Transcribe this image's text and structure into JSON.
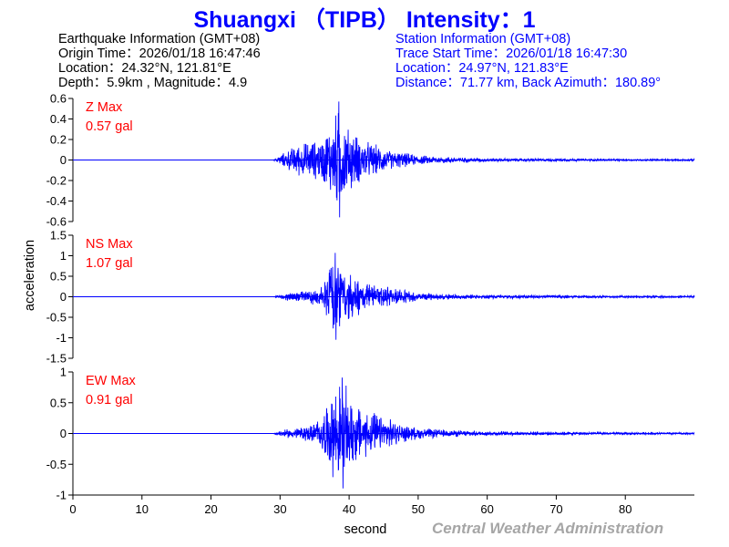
{
  "title": "Shuangxi （TIPB） Intensity：1",
  "earthquake": {
    "header": "Earthquake Information  (GMT+08)",
    "origin_time": "Origin Time：2026/01/18 16:47:46",
    "location": "Location：24.32°N, 121.81°E",
    "depth_magnitude": "Depth：5.9km , Magnitude：4.9"
  },
  "station": {
    "header": "Station Information  (GMT+08)",
    "trace_start": "Trace Start Time：2026/01/18 16:47:30",
    "location": "Location：24.97°N, 121.83°E",
    "distance": "Distance：71.77 km, Back Azimuth：180.89°"
  },
  "credit": "Central Weather Administration",
  "colors": {
    "trace": "#0000ff",
    "label": "#ff0000",
    "axis": "#000000",
    "credit": "#a6a6a6"
  },
  "chart_data": {
    "type": "line",
    "xlabel": "second",
    "ylabel": "acceleration",
    "xlim": [
      0,
      90
    ],
    "x_ticks": [
      0,
      10,
      20,
      30,
      40,
      50,
      60,
      70,
      80
    ],
    "grid": false,
    "series": [
      {
        "name": "Z Max",
        "annotation": "0.57 gal",
        "ylim": [
          -0.6,
          0.6
        ],
        "y_ticks": [
          0.6,
          0.4,
          0.2,
          0,
          -0.2,
          -0.4,
          -0.6
        ],
        "y_tick_labels": [
          "0.6",
          "0.4",
          "0.2",
          "0",
          "-0.2",
          "-0.4",
          "-0.6"
        ],
        "peak": 0.57,
        "envelope": {
          "t": [
            0,
            29,
            30,
            32,
            34,
            36,
            37.5,
            38.5,
            39.5,
            41,
            42,
            44,
            46,
            48,
            50,
            55,
            60,
            70,
            80,
            90
          ],
          "a": [
            0.0,
            0.0,
            0.05,
            0.15,
            0.2,
            0.22,
            0.42,
            0.57,
            0.38,
            0.28,
            0.22,
            0.16,
            0.1,
            0.08,
            0.05,
            0.03,
            0.02,
            0.015,
            0.01,
            0.01
          ]
        }
      },
      {
        "name": "NS Max",
        "annotation": "1.07 gal",
        "ylim": [
          -1.5,
          1.5
        ],
        "y_ticks": [
          1.5,
          1,
          0.5,
          0,
          -0.5,
          -1,
          -1.5
        ],
        "y_tick_labels": [
          "1.5",
          "1",
          "0.5",
          "0",
          "-0.5",
          "-1",
          "-1.5"
        ],
        "peak": 1.07,
        "envelope": {
          "t": [
            0,
            29,
            30,
            32,
            34,
            36,
            37,
            38,
            39,
            40,
            42,
            44,
            46,
            48,
            50,
            55,
            60,
            70,
            80,
            90
          ],
          "a": [
            0.0,
            0.0,
            0.06,
            0.15,
            0.18,
            0.25,
            0.7,
            1.07,
            0.8,
            0.6,
            0.45,
            0.35,
            0.22,
            0.18,
            0.12,
            0.07,
            0.05,
            0.04,
            0.03,
            0.03
          ]
        }
      },
      {
        "name": "EW Max",
        "annotation": "0.91 gal",
        "ylim": [
          -1,
          1
        ],
        "y_ticks": [
          1,
          0.5,
          0,
          -0.5,
          -1
        ],
        "y_tick_labels": [
          "1",
          "0.5",
          "0",
          "-0.5",
          "-1"
        ],
        "peak": 0.91,
        "envelope": {
          "t": [
            0,
            29,
            30,
            32,
            34,
            35,
            36,
            37,
            38,
            39,
            40,
            41,
            42,
            44,
            46,
            48,
            50,
            55,
            60,
            70,
            80,
            90
          ],
          "a": [
            0.0,
            0.0,
            0.05,
            0.1,
            0.14,
            0.2,
            0.3,
            0.55,
            0.85,
            0.91,
            0.7,
            0.55,
            0.45,
            0.35,
            0.25,
            0.15,
            0.1,
            0.06,
            0.04,
            0.03,
            0.02,
            0.02
          ]
        }
      }
    ]
  }
}
